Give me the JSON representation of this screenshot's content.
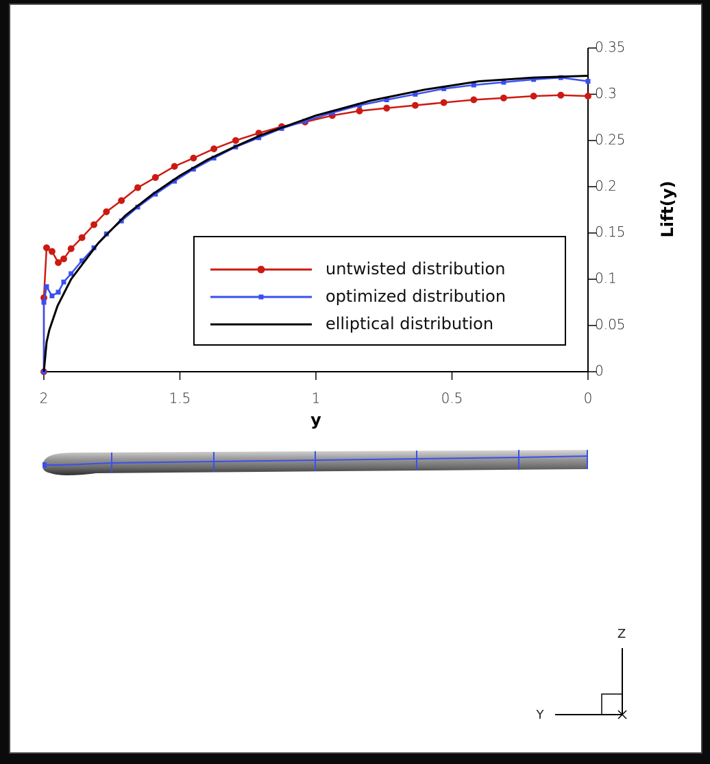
{
  "chart_data": {
    "type": "line",
    "x_label": "y",
    "y_label": "Lift(y)",
    "xlim": [
      2,
      0
    ],
    "ylim": [
      0,
      0.35
    ],
    "xticks": [
      2,
      1.5,
      1,
      0.5,
      0
    ],
    "yticks": [
      0,
      0.05,
      0.1,
      0.15,
      0.2,
      0.25,
      0.3,
      0.35
    ],
    "y_axis_side": "right",
    "legend": "center",
    "series": [
      {
        "name": "untwisted distribution",
        "color": "#cc1a12",
        "marker": "circle",
        "x": [
          2,
          2,
          1.99,
          1.97,
          1.947,
          1.927,
          1.9,
          1.86,
          1.816,
          1.77,
          1.715,
          1.655,
          1.59,
          1.52,
          1.45,
          1.375,
          1.295,
          1.21,
          1.126,
          1.04,
          0.94,
          0.84,
          0.74,
          0.635,
          0.53,
          0.42,
          0.31,
          0.2,
          0.1,
          0
        ],
        "values": [
          0,
          0.08,
          0.134,
          0.13,
          0.118,
          0.122,
          0.133,
          0.145,
          0.159,
          0.173,
          0.185,
          0.199,
          0.21,
          0.222,
          0.231,
          0.241,
          0.25,
          0.258,
          0.265,
          0.27,
          0.277,
          0.282,
          0.285,
          0.288,
          0.291,
          0.294,
          0.296,
          0.298,
          0.299,
          0.298
        ]
      },
      {
        "name": "optimized distribution",
        "color": "#3a4ff0",
        "marker": "square",
        "x": [
          2,
          2,
          1.99,
          1.97,
          1.947,
          1.927,
          1.9,
          1.86,
          1.816,
          1.77,
          1.715,
          1.655,
          1.59,
          1.52,
          1.45,
          1.375,
          1.295,
          1.21,
          1.126,
          1.04,
          0.94,
          0.84,
          0.74,
          0.635,
          0.53,
          0.42,
          0.31,
          0.2,
          0.1,
          0
        ],
        "values": [
          0,
          0.075,
          0.092,
          0.082,
          0.086,
          0.097,
          0.106,
          0.12,
          0.134,
          0.149,
          0.163,
          0.178,
          0.192,
          0.206,
          0.219,
          0.231,
          0.243,
          0.253,
          0.263,
          0.271,
          0.28,
          0.288,
          0.294,
          0.3,
          0.306,
          0.31,
          0.313,
          0.316,
          0.318,
          0.314
        ]
      },
      {
        "name": "elliptical distribution",
        "color": "#000000",
        "marker": "none",
        "x": [
          2,
          1.99,
          1.98,
          1.95,
          1.9,
          1.8,
          1.7,
          1.6,
          1.5,
          1.4,
          1.3,
          1.2,
          1,
          0.8,
          0.6,
          0.4,
          0.2,
          0
        ],
        "values": [
          0,
          0.032,
          0.045,
          0.071,
          0.1,
          0.139,
          0.169,
          0.192,
          0.212,
          0.229,
          0.243,
          0.256,
          0.277,
          0.293,
          0.305,
          0.314,
          0.318,
          0.32
        ]
      }
    ]
  },
  "axes_triad": {
    "z_label": "Z",
    "y_label": "Y"
  }
}
